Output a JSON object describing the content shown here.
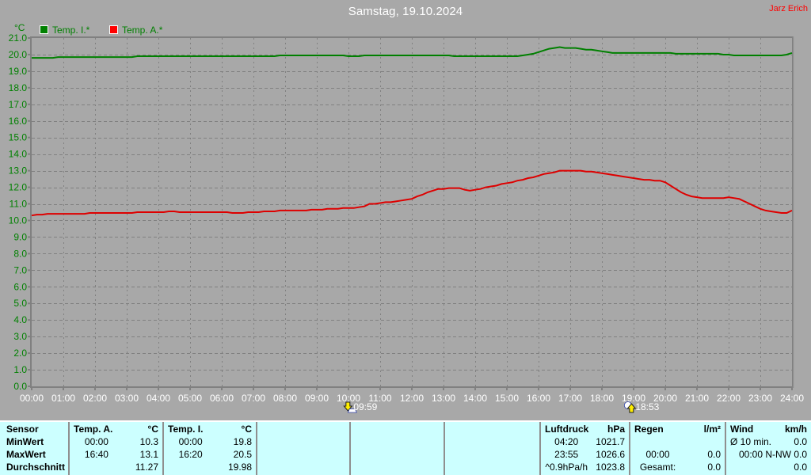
{
  "window": {
    "background_color": "#A8A8A8"
  },
  "header": {
    "title": "Samstag, 19.10.2024",
    "owner": "Jarz Erich",
    "owner_color": "#FF0000"
  },
  "legend": {
    "unit": "°C",
    "items": [
      {
        "label": "Temp. I.*",
        "color": "#008000"
      },
      {
        "label": "Temp. A.*",
        "color": "#FF0000"
      }
    ]
  },
  "chart_data": {
    "type": "line",
    "title": "Samstag, 19.10.2024",
    "x_range": [
      0,
      24
    ],
    "y_range": [
      0,
      21
    ],
    "y_tick_step": 1.0,
    "x_tick_step_hours": 1,
    "x_tick_labels": [
      "00:00",
      "01:00",
      "02:00",
      "03:00",
      "04:00",
      "05:00",
      "06:00",
      "07:00",
      "08:00",
      "09:00",
      "10:00",
      "11:00",
      "12:00",
      "13:00",
      "14:00",
      "15:00",
      "16:00",
      "17:00",
      "18:00",
      "19:00",
      "20:00",
      "21:00",
      "22:00",
      "23:00",
      "24:00"
    ],
    "y_tick_labels": [
      "0.0",
      "1.0",
      "2.0",
      "3.0",
      "4.0",
      "5.0",
      "6.0",
      "7.0",
      "8.0",
      "9.0",
      "10.0",
      "11.0",
      "12.0",
      "13.0",
      "14.0",
      "15.0",
      "16.0",
      "17.0",
      "18.0",
      "19.0",
      "20.0",
      "21.0"
    ],
    "grid": true,
    "grid_color": "#808080",
    "axis_color": "#808080",
    "y_label_color": "#008000",
    "x_label_color": "#FFFFFF",
    "ylabel": "°C",
    "series": [
      {
        "name": "Temp. I.*",
        "color": "#008000",
        "start_hour": 0,
        "interval_minutes": 10,
        "values": [
          19.8,
          19.8,
          19.8,
          19.8,
          19.8,
          19.85,
          19.85,
          19.85,
          19.85,
          19.85,
          19.85,
          19.85,
          19.85,
          19.85,
          19.85,
          19.85,
          19.85,
          19.85,
          19.85,
          19.85,
          19.9,
          19.9,
          19.9,
          19.9,
          19.9,
          19.9,
          19.9,
          19.9,
          19.9,
          19.9,
          19.9,
          19.9,
          19.9,
          19.9,
          19.9,
          19.9,
          19.9,
          19.9,
          19.9,
          19.9,
          19.9,
          19.9,
          19.9,
          19.9,
          19.9,
          19.9,
          19.9,
          19.95,
          19.95,
          19.95,
          19.95,
          19.95,
          19.95,
          19.95,
          19.95,
          19.95,
          19.95,
          19.95,
          19.95,
          19.95,
          19.9,
          19.9,
          19.9,
          19.95,
          19.95,
          19.95,
          19.95,
          19.95,
          19.95,
          19.95,
          19.95,
          19.95,
          19.95,
          19.95,
          19.95,
          19.95,
          19.95,
          19.95,
          19.95,
          19.95,
          19.9,
          19.9,
          19.9,
          19.9,
          19.9,
          19.9,
          19.9,
          19.9,
          19.9,
          19.9,
          19.9,
          19.9,
          19.9,
          19.95,
          20.0,
          20.05,
          20.15,
          20.25,
          20.35,
          20.4,
          20.45,
          20.4,
          20.4,
          20.4,
          20.35,
          20.3,
          20.3,
          20.25,
          20.2,
          20.15,
          20.1,
          20.1,
          20.1,
          20.1,
          20.1,
          20.1,
          20.1,
          20.1,
          20.1,
          20.1,
          20.1,
          20.1,
          20.05,
          20.05,
          20.05,
          20.05,
          20.05,
          20.05,
          20.05,
          20.05,
          20.05,
          20.0,
          20.0,
          19.95,
          19.95,
          19.95,
          19.95,
          19.95,
          19.95,
          19.95,
          19.95,
          19.95,
          19.95,
          20.0,
          20.1
        ]
      },
      {
        "name": "Temp. A.*",
        "color": "#DE0000",
        "start_hour": 0,
        "interval_minutes": 10,
        "values": [
          10.3,
          10.35,
          10.35,
          10.4,
          10.4,
          10.4,
          10.4,
          10.4,
          10.4,
          10.4,
          10.4,
          10.45,
          10.45,
          10.45,
          10.45,
          10.45,
          10.45,
          10.45,
          10.45,
          10.45,
          10.5,
          10.5,
          10.5,
          10.5,
          10.5,
          10.5,
          10.55,
          10.55,
          10.5,
          10.5,
          10.5,
          10.5,
          10.5,
          10.5,
          10.5,
          10.5,
          10.5,
          10.5,
          10.45,
          10.45,
          10.45,
          10.5,
          10.5,
          10.5,
          10.55,
          10.55,
          10.55,
          10.6,
          10.6,
          10.6,
          10.6,
          10.6,
          10.6,
          10.65,
          10.65,
          10.65,
          10.7,
          10.7,
          10.7,
          10.75,
          10.75,
          10.75,
          10.8,
          10.85,
          11.0,
          11.0,
          11.05,
          11.1,
          11.1,
          11.15,
          11.2,
          11.25,
          11.3,
          11.45,
          11.55,
          11.7,
          11.8,
          11.9,
          11.9,
          11.95,
          11.95,
          11.95,
          11.85,
          11.8,
          11.85,
          11.9,
          12.0,
          12.05,
          12.1,
          12.2,
          12.25,
          12.3,
          12.4,
          12.45,
          12.55,
          12.6,
          12.7,
          12.8,
          12.85,
          12.9,
          13.0,
          13.0,
          13.0,
          13.0,
          13.0,
          12.95,
          12.95,
          12.9,
          12.85,
          12.8,
          12.75,
          12.7,
          12.65,
          12.6,
          12.55,
          12.5,
          12.45,
          12.45,
          12.4,
          12.4,
          12.3,
          12.1,
          11.9,
          11.7,
          11.55,
          11.45,
          11.4,
          11.35,
          11.35,
          11.35,
          11.35,
          11.35,
          11.4,
          11.35,
          11.3,
          11.15,
          11.0,
          10.85,
          10.7,
          10.6,
          10.55,
          10.5,
          10.45,
          10.45,
          10.6
        ]
      }
    ],
    "markers": [
      {
        "label": "09:59",
        "hour": 9.9833,
        "icon": "sun-arrow-down"
      },
      {
        "label": "18:53",
        "hour": 18.8833,
        "icon": "sun-arrow-up"
      }
    ]
  },
  "table": {
    "background_color": "#CCFFFF",
    "row_labels": [
      "Sensor",
      "MinWert",
      "MaxWert",
      "Durchschnitt"
    ],
    "columns": [
      {
        "header": "Temp. A.",
        "unit": "°C",
        "rows": [
          {
            "l": "00:00",
            "r": "10.3"
          },
          {
            "l": "16:40",
            "r": "13.1"
          },
          {
            "l": "",
            "r": "11.27"
          }
        ]
      },
      {
        "header": "Temp. I.",
        "unit": "°C",
        "rows": [
          {
            "l": "00:00",
            "r": "19.8"
          },
          {
            "l": "16:20",
            "r": "20.5"
          },
          {
            "l": "",
            "r": "19.98"
          }
        ]
      },
      {
        "header": "",
        "unit": "",
        "rows": [
          {
            "l": "",
            "r": ""
          },
          {
            "l": "",
            "r": ""
          },
          {
            "l": "",
            "r": ""
          }
        ]
      },
      {
        "header": "",
        "unit": "",
        "rows": [
          {
            "l": "",
            "r": ""
          },
          {
            "l": "",
            "r": ""
          },
          {
            "l": "",
            "r": ""
          }
        ]
      },
      {
        "header": "",
        "unit": "",
        "rows": [
          {
            "l": "",
            "r": ""
          },
          {
            "l": "",
            "r": ""
          },
          {
            "l": "",
            "r": ""
          }
        ]
      },
      {
        "header": "Luftdruck",
        "unit": "hPa",
        "rows": [
          {
            "l": "04:20",
            "r": "1021.7"
          },
          {
            "l": "23:55",
            "r": "1026.6"
          },
          {
            "l": "^0.9hPa/h",
            "r": "1023.8"
          }
        ]
      },
      {
        "header": "Regen",
        "unit": "l/m²",
        "rows": [
          {
            "l": "",
            "r": ""
          },
          {
            "l": "00:00",
            "r": "0.0"
          },
          {
            "l": "Gesamt:",
            "r": "0.0"
          }
        ]
      },
      {
        "header": "Wind",
        "unit": "km/h",
        "rows": [
          {
            "l": "Ø 10 min.",
            "r": "0.0"
          },
          {
            "l": "00:00",
            "r": "N-NW 0.0"
          },
          {
            "l": "",
            "r": "0.0"
          }
        ]
      }
    ]
  }
}
